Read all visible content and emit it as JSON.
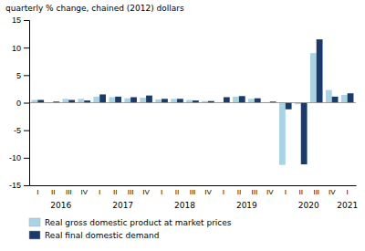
{
  "chart_data": {
    "type": "bar",
    "y_label": "quarterly % change, chained (2012) dollars",
    "categories": [
      "I",
      "II",
      "III",
      "IV",
      "I",
      "II",
      "III",
      "IV",
      "I",
      "II",
      "III",
      "IV",
      "I",
      "II",
      "III",
      "IV",
      "I",
      "II",
      "III",
      "IV",
      "I"
    ],
    "years": [
      2016,
      2016,
      2016,
      2016,
      2017,
      2017,
      2017,
      2017,
      2018,
      2018,
      2018,
      2018,
      2019,
      2019,
      2019,
      2019,
      2020,
      2020,
      2020,
      2020,
      2021
    ],
    "series": [
      {
        "name": "Real gross domestic product at market prices",
        "color": "#a8d4e6",
        "values": [
          0.5,
          -0.1,
          0.7,
          0.7,
          1.1,
          1.0,
          0.8,
          0.9,
          0.6,
          0.7,
          0.5,
          0.3,
          0.1,
          1.1,
          0.7,
          0.1,
          -11.3,
          -0.3,
          9.0,
          2.3,
          1.4
        ]
      },
      {
        "name": "Real final domestic demand",
        "color": "#1a3a6b",
        "values": [
          0.5,
          0.2,
          0.5,
          0.4,
          1.5,
          1.1,
          1.0,
          1.3,
          0.7,
          0.7,
          0.4,
          0.3,
          1.0,
          1.2,
          0.8,
          0.2,
          -1.2,
          -11.2,
          11.5,
          1.1,
          1.7
        ]
      }
    ],
    "ylim": [
      -15,
      15
    ],
    "yticks": [
      -15,
      -10,
      -5,
      0,
      5,
      10,
      15
    ],
    "grid": false,
    "legend": "bottom"
  }
}
